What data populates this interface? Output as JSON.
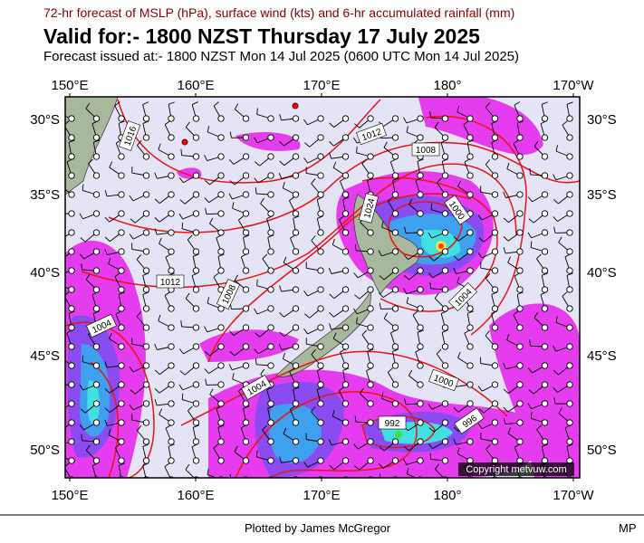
{
  "header": {
    "subtitle": "72-hr forecast of MSLP (hPa), surface wind (kts) and 6-hr accumulated rainfall (mm)",
    "title": "Valid for:- 1800 NZST Thursday 17 July 2025",
    "issued": "Forecast issued at:- 1800 NZST Mon 14 Jul 2025 (0600 UTC Mon 14 Jul 2025)"
  },
  "map": {
    "longitudes": [
      "150°E",
      "160°E",
      "170°E",
      "180°",
      "170°W"
    ],
    "latitudes": [
      "30°S",
      "35°S",
      "40°S",
      "45°S",
      "50°S"
    ],
    "isobar_labels": [
      "1016",
      "1012",
      "1008",
      "1024",
      "1000",
      "1012",
      "1008",
      "1004",
      "1004",
      "1004",
      "1000",
      "992",
      "996"
    ],
    "copyright": "Copyright metvuw.com"
  },
  "footer": {
    "credit": "Plotted by James McGregor",
    "initials": "MP"
  }
}
